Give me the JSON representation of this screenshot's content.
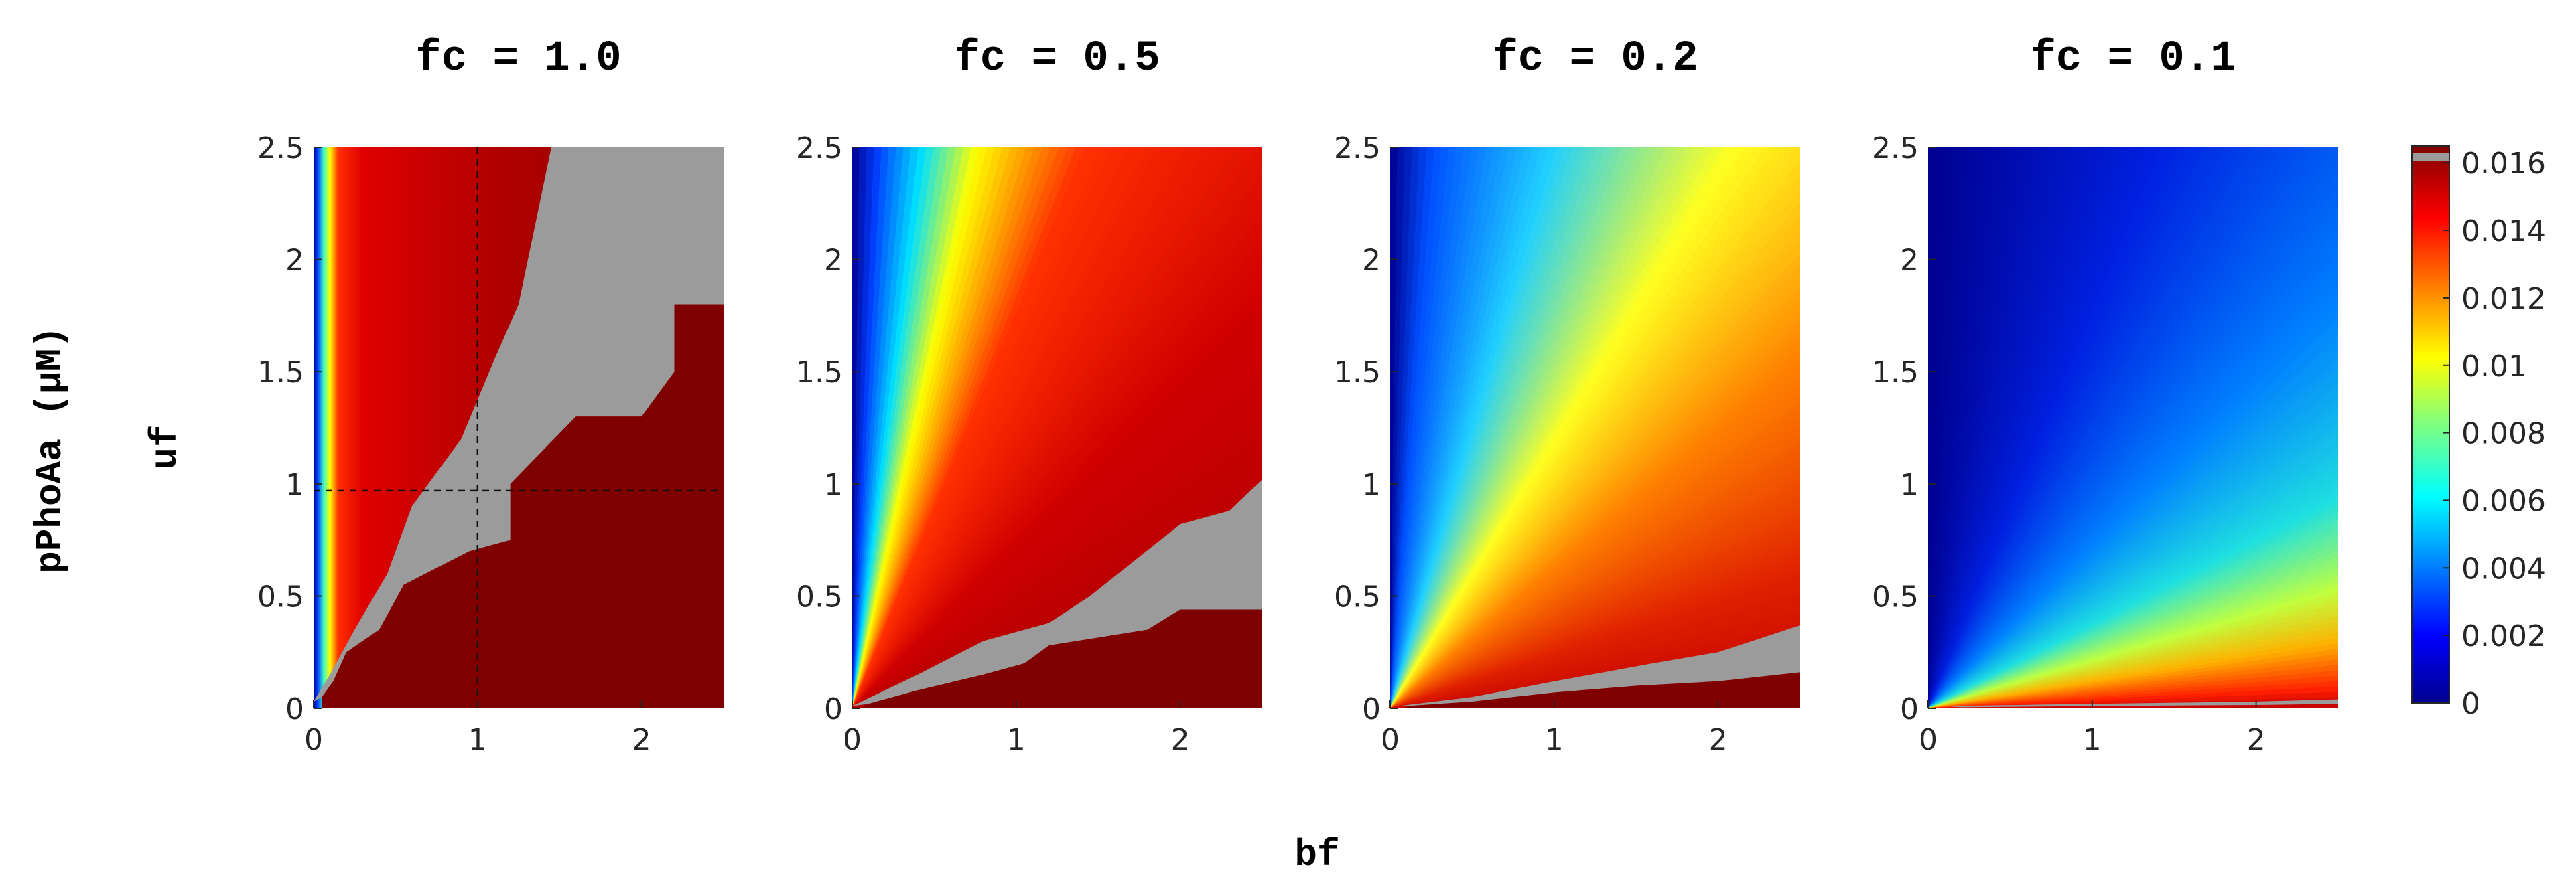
{
  "chart_data": {
    "type": "heatmap",
    "colormap": "jet",
    "ylabel_outer": "pPhoAa (μM)",
    "ylabel": "uf",
    "xlabel": "bf",
    "xlim": [
      0,
      2.5
    ],
    "ylim": [
      0,
      2.5
    ],
    "x_ticks": [
      "0",
      "1",
      "2"
    ],
    "y_ticks": [
      "0",
      "0.5",
      "1",
      "1.5",
      "2",
      "2.5"
    ],
    "colorbar": {
      "range": [
        0,
        0.0165
      ],
      "tick_labels": [
        "0",
        "0.002",
        "0.004",
        "0.006",
        "0.008",
        "0.01",
        "0.012",
        "0.014",
        "0.016"
      ]
    },
    "panels": [
      {
        "title": "fc = 1.0",
        "fc": 1.0,
        "gray_region": "band from origin widening to the upper right",
        "crosshair": [
          1.0,
          0.97
        ]
      },
      {
        "title": "fc = 0.5",
        "fc": 0.5,
        "gray_region": "thin band rising from origin to about uf 0.9 at bf 2.5"
      },
      {
        "title": "fc = 0.2",
        "fc": 0.2,
        "gray_region": "thin band near bottom rising to about uf 0.3 at bf 2.5"
      },
      {
        "title": "fc = 0.1",
        "fc": 0.1,
        "gray_region": "very thin band along uf ≈ 0.02"
      }
    ],
    "colors": {
      "gray_band": "#9b9b9b",
      "dark_red": "#7f0000"
    }
  }
}
